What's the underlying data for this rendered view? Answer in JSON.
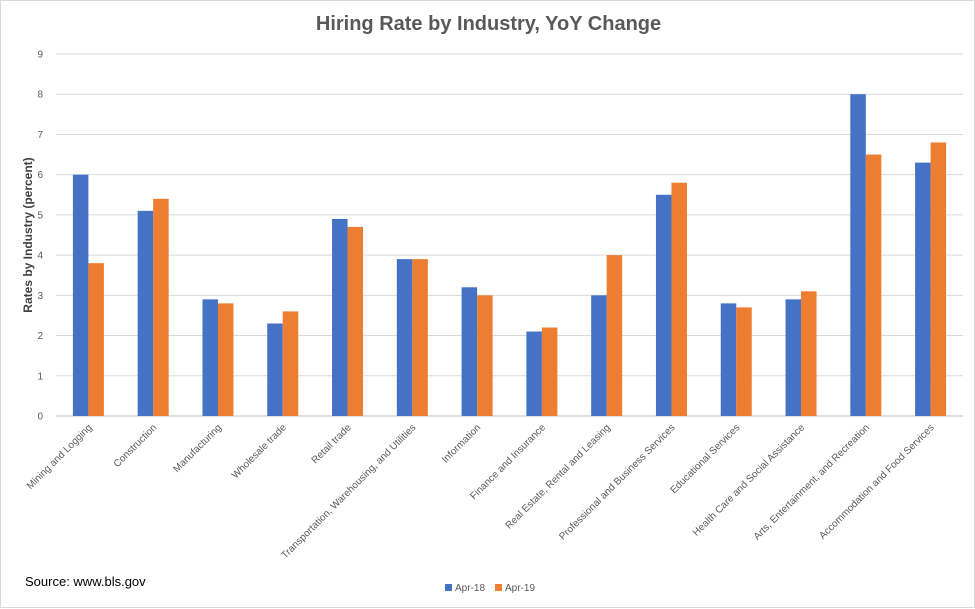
{
  "chart_data": {
    "type": "bar",
    "title": "Hiring Rate by Industry, YoY Change",
    "xlabel": "",
    "ylabel": "Rates by Industry (percent)",
    "ylim": [
      0,
      9
    ],
    "yticks": [
      0,
      1,
      2,
      3,
      4,
      5,
      6,
      7,
      8,
      9
    ],
    "grid": true,
    "legend_position": "bottom",
    "categories": [
      "Mining and Logging",
      "Construction",
      "Manufacturing",
      "Wholesale trade",
      "Retail trade",
      "Transportation, Warehousing, and Utilities",
      "Information",
      "Finance and Insurance",
      "Real Estate, Rental and Leasing",
      "Professional and Business Services",
      "Educational Services",
      "Health Care and Social Assistance",
      "Arts, Entertainment, and Recreation",
      "Accommodation and Food Services"
    ],
    "series": [
      {
        "name": "Apr-18",
        "color": "#4472C4",
        "values": [
          6.0,
          5.1,
          2.9,
          2.3,
          4.9,
          3.9,
          3.2,
          2.1,
          3.0,
          5.5,
          2.8,
          2.9,
          8.0,
          6.3
        ]
      },
      {
        "name": "Apr-19",
        "color": "#ED7D31",
        "values": [
          3.8,
          5.4,
          2.8,
          2.6,
          4.7,
          3.9,
          3.0,
          2.2,
          4.0,
          5.8,
          2.7,
          3.1,
          6.5,
          6.8
        ]
      }
    ]
  },
  "source_note": "Source: www.bls.gov"
}
